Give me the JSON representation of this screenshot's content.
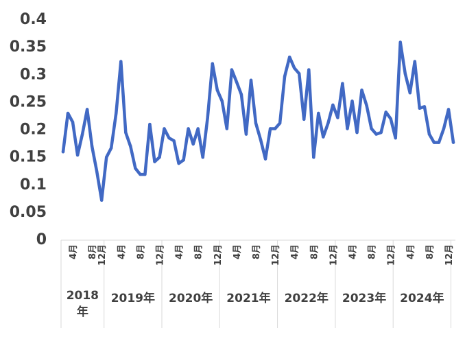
{
  "chart_data": {
    "type": "line",
    "title": "",
    "xlabel": "",
    "ylabel": "",
    "ylim": [
      0,
      0.4
    ],
    "y_ticks": [
      "0",
      "0.05",
      "0.1",
      "0.15",
      "0.2",
      "0.25",
      "0.3",
      "0.35",
      "0.4"
    ],
    "grid": false,
    "legend": "none",
    "line_color": "#4169C4",
    "years": [
      {
        "label": "2018\n年",
        "start": 0,
        "end": 8
      },
      {
        "label": "2019年",
        "start": 8,
        "end": 20
      },
      {
        "label": "2020年",
        "start": 20,
        "end": 32
      },
      {
        "label": "2021年",
        "start": 32,
        "end": 44
      },
      {
        "label": "2022年",
        "start": 44,
        "end": 56
      },
      {
        "label": "2023年",
        "start": 56,
        "end": 68
      },
      {
        "label": "2024年",
        "start": 68,
        "end": 80
      }
    ],
    "month_ticks": [
      {
        "index": 2,
        "label": "4月"
      },
      {
        "index": 6,
        "label": "8月"
      },
      {
        "index": 8,
        "label": "12月"
      },
      {
        "index": 12,
        "label": "4月"
      },
      {
        "index": 16,
        "label": "8月"
      },
      {
        "index": 20,
        "label": "12月"
      },
      {
        "index": 24,
        "label": "4月"
      },
      {
        "index": 28,
        "label": "8月"
      },
      {
        "index": 32,
        "label": "12月"
      },
      {
        "index": 36,
        "label": "4月"
      },
      {
        "index": 40,
        "label": "8月"
      },
      {
        "index": 44,
        "label": "12月"
      },
      {
        "index": 48,
        "label": "4月"
      },
      {
        "index": 52,
        "label": "8月"
      },
      {
        "index": 56,
        "label": "12月"
      },
      {
        "index": 60,
        "label": "4月"
      },
      {
        "index": 64,
        "label": "8月"
      },
      {
        "index": 68,
        "label": "12月"
      },
      {
        "index": 72,
        "label": "4月"
      },
      {
        "index": 76,
        "label": "8月"
      },
      {
        "index": 80,
        "label": "12月"
      }
    ],
    "series": [
      {
        "values": [
          0.158,
          0.228,
          0.212,
          0.152,
          0.19,
          0.235,
          0.168,
          0.122,
          0.07,
          0.148,
          0.165,
          0.228,
          0.322,
          0.193,
          0.168,
          0.128,
          0.117,
          0.117,
          0.208,
          0.14,
          0.148,
          0.2,
          0.183,
          0.178,
          0.137,
          0.143,
          0.2,
          0.172,
          0.2,
          0.148,
          0.22,
          0.318,
          0.27,
          0.25,
          0.2,
          0.307,
          0.285,
          0.262,
          0.19,
          0.288,
          0.21,
          0.18,
          0.145,
          0.2,
          0.2,
          0.21,
          0.295,
          0.33,
          0.31,
          0.3,
          0.217,
          0.307,
          0.148,
          0.228,
          0.185,
          0.21,
          0.243,
          0.22,
          0.282,
          0.2,
          0.25,
          0.193,
          0.27,
          0.242,
          0.2,
          0.19,
          0.193,
          0.23,
          0.218,
          0.183,
          0.357,
          0.3,
          0.265,
          0.322,
          0.237,
          0.24,
          0.19,
          0.175,
          0.175,
          0.2,
          0.235,
          0.175
        ]
      }
    ]
  }
}
